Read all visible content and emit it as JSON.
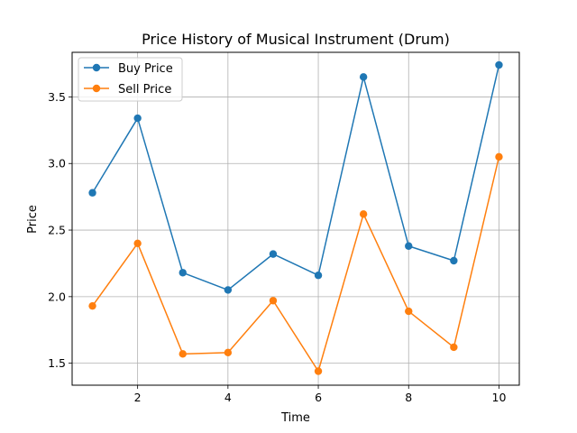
{
  "chart_data": {
    "type": "line",
    "title": "Price History of Musical Instrument (Drum)",
    "xlabel": "Time",
    "ylabel": "Price",
    "x": [
      1,
      2,
      3,
      4,
      5,
      6,
      7,
      8,
      9,
      10
    ],
    "xlim": [
      0.55,
      10.45
    ],
    "ylim": [
      1.335,
      3.835
    ],
    "xticks": [
      2,
      4,
      6,
      8,
      10
    ],
    "yticks": [
      1.5,
      2.0,
      2.5,
      3.0,
      3.5
    ],
    "xtick_labels": [
      "2",
      "4",
      "6",
      "8",
      "10"
    ],
    "ytick_labels": [
      "1.5",
      "2.0",
      "2.5",
      "3.0",
      "3.5"
    ],
    "grid": true,
    "legend_position": "top-left",
    "series": [
      {
        "name": "Buy Price",
        "color": "#1f77b4",
        "values": [
          2.78,
          3.34,
          2.18,
          2.05,
          2.32,
          2.16,
          3.65,
          2.38,
          2.27,
          3.74
        ]
      },
      {
        "name": "Sell Price",
        "color": "#ff7f0e",
        "values": [
          1.93,
          2.4,
          1.57,
          1.58,
          1.97,
          1.44,
          2.62,
          1.89,
          1.62,
          3.05
        ]
      }
    ]
  }
}
